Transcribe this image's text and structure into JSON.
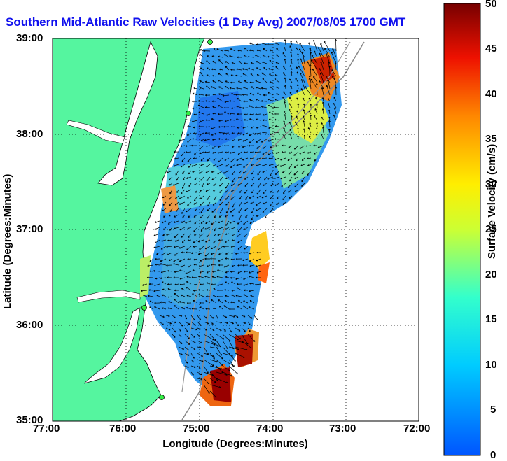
{
  "title": "Southern Mid-Atlantic Raw Velocities (1 Day Avg) 2007/08/05 1700 GMT",
  "axes": {
    "xlabel": "Longitude (Degrees:Minutes)",
    "ylabel": "Latitude (Degrees:Minutes)",
    "x_ticks": [
      "77:00",
      "76:00",
      "75:00",
      "74:00",
      "73:00",
      "72:00"
    ],
    "y_ticks": [
      "39:00",
      "38:00",
      "37:00",
      "36:00",
      "35:00"
    ]
  },
  "colorbar": {
    "label": "Surface Velocity (cm/s)",
    "min": 0,
    "max": 50,
    "ticks": [
      "50",
      "45",
      "40",
      "35",
      "30",
      "25",
      "20",
      "15",
      "10",
      "5",
      "0"
    ]
  },
  "colors": {
    "land": "#55f59f",
    "title": "#1010ee",
    "coast": "#000000"
  }
}
